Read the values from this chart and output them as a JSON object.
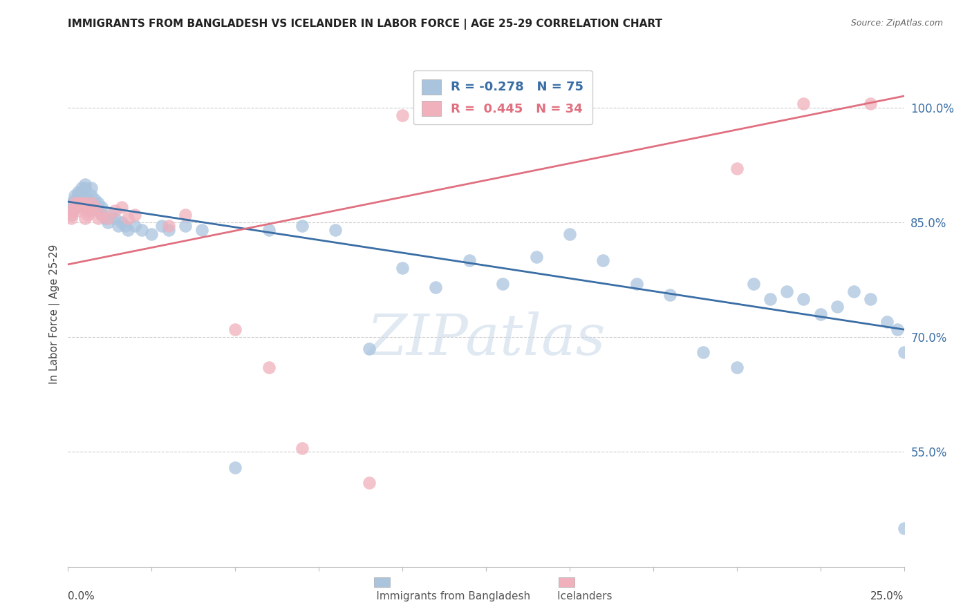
{
  "title": "IMMIGRANTS FROM BANGLADESH VS ICELANDER IN LABOR FORCE | AGE 25-29 CORRELATION CHART",
  "source": "Source: ZipAtlas.com",
  "ylabel_label": "In Labor Force | Age 25-29",
  "y_ticks": [
    0.55,
    0.7,
    0.85,
    1.0
  ],
  "y_tick_labels": [
    "55.0%",
    "70.0%",
    "85.0%",
    "100.0%"
  ],
  "x_min": 0.0,
  "x_max": 0.25,
  "y_min": 0.4,
  "y_max": 1.06,
  "legend_blue_r": "R = -0.278",
  "legend_blue_n": "N = 75",
  "legend_pink_r": "R =  0.445",
  "legend_pink_n": "N = 34",
  "blue_color": "#aac4de",
  "blue_line_color": "#3a6ea5",
  "pink_color": "#f0b0bc",
  "pink_line_color": "#e07080",
  "watermark": "ZIPatlas",
  "blue_line_x0": 0.0,
  "blue_line_y0": 0.877,
  "blue_line_x1": 0.25,
  "blue_line_y1": 0.71,
  "pink_line_x0": 0.0,
  "pink_line_y0": 0.795,
  "pink_line_x1": 0.25,
  "pink_line_y1": 1.015,
  "blue_scatter_x": [
    0.001,
    0.001,
    0.001,
    0.001,
    0.002,
    0.002,
    0.002,
    0.002,
    0.003,
    0.003,
    0.003,
    0.003,
    0.003,
    0.004,
    0.004,
    0.004,
    0.004,
    0.005,
    0.005,
    0.005,
    0.006,
    0.006,
    0.006,
    0.007,
    0.007,
    0.007,
    0.008,
    0.008,
    0.009,
    0.009,
    0.01,
    0.01,
    0.011,
    0.012,
    0.013,
    0.014,
    0.015,
    0.016,
    0.017,
    0.018,
    0.02,
    0.022,
    0.025,
    0.028,
    0.03,
    0.035,
    0.04,
    0.05,
    0.06,
    0.07,
    0.08,
    0.09,
    0.1,
    0.11,
    0.12,
    0.13,
    0.14,
    0.15,
    0.16,
    0.17,
    0.18,
    0.19,
    0.2,
    0.205,
    0.21,
    0.215,
    0.22,
    0.225,
    0.23,
    0.235,
    0.24,
    0.245,
    0.248,
    0.25,
    0.25
  ],
  "blue_scatter_y": [
    0.875,
    0.87,
    0.865,
    0.86,
    0.885,
    0.88,
    0.875,
    0.87,
    0.89,
    0.885,
    0.88,
    0.875,
    0.87,
    0.895,
    0.89,
    0.885,
    0.88,
    0.9,
    0.895,
    0.88,
    0.865,
    0.88,
    0.875,
    0.895,
    0.885,
    0.87,
    0.87,
    0.88,
    0.875,
    0.865,
    0.87,
    0.86,
    0.855,
    0.85,
    0.86,
    0.855,
    0.845,
    0.85,
    0.845,
    0.84,
    0.845,
    0.84,
    0.835,
    0.845,
    0.84,
    0.845,
    0.84,
    0.53,
    0.84,
    0.845,
    0.84,
    0.685,
    0.79,
    0.765,
    0.8,
    0.77,
    0.805,
    0.835,
    0.8,
    0.77,
    0.755,
    0.68,
    0.66,
    0.77,
    0.75,
    0.76,
    0.75,
    0.73,
    0.74,
    0.76,
    0.75,
    0.72,
    0.71,
    0.68,
    0.45
  ],
  "pink_scatter_x": [
    0.001,
    0.001,
    0.001,
    0.002,
    0.002,
    0.003,
    0.003,
    0.004,
    0.004,
    0.005,
    0.005,
    0.006,
    0.006,
    0.007,
    0.007,
    0.008,
    0.009,
    0.01,
    0.012,
    0.014,
    0.016,
    0.018,
    0.02,
    0.03,
    0.035,
    0.05,
    0.06,
    0.07,
    0.09,
    0.1,
    0.15,
    0.2,
    0.22,
    0.24
  ],
  "pink_scatter_y": [
    0.855,
    0.86,
    0.865,
    0.87,
    0.875,
    0.865,
    0.875,
    0.87,
    0.875,
    0.855,
    0.875,
    0.86,
    0.87,
    0.875,
    0.865,
    0.87,
    0.855,
    0.86,
    0.855,
    0.865,
    0.87,
    0.855,
    0.86,
    0.845,
    0.86,
    0.71,
    0.66,
    0.555,
    0.51,
    0.99,
    1.005,
    0.92,
    1.005,
    1.005
  ]
}
